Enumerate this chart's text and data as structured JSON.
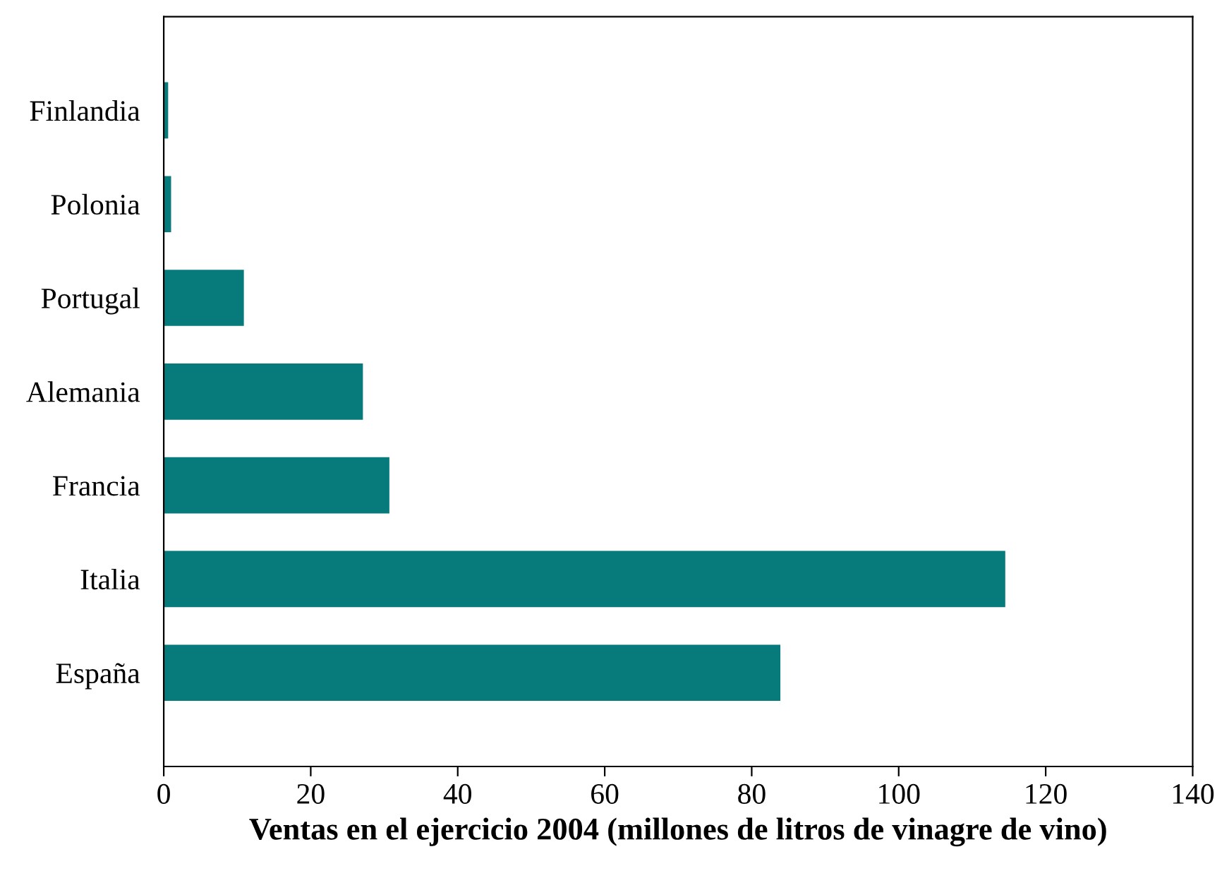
{
  "chart_data": {
    "type": "bar",
    "orientation": "horizontal",
    "categories": [
      "Finlandia",
      "Polonia",
      "Portugal",
      "Alemania",
      "Francia",
      "Italia",
      "España"
    ],
    "values": [
      0.6,
      1.0,
      10.9,
      27.1,
      30.7,
      114.5,
      83.9
    ],
    "color": "#077b7b",
    "xlabel": "Ventas en el ejercicio 2004 (millones de litros de vinagre de vino)",
    "xlim": [
      0,
      140
    ],
    "xticks": [
      0,
      20,
      40,
      60,
      80,
      100,
      120,
      140
    ],
    "grid": false,
    "legend": false
  }
}
